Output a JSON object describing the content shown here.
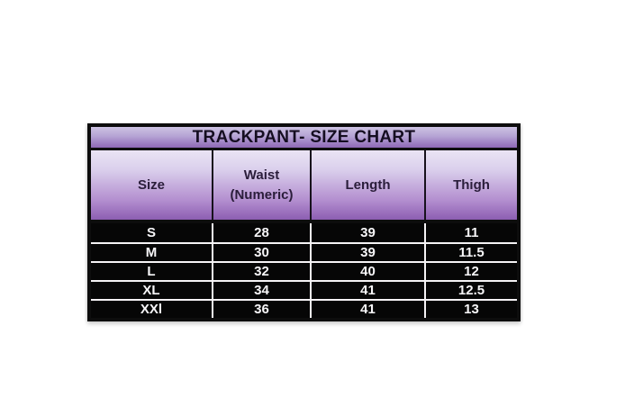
{
  "chart_data": {
    "type": "table",
    "title": "TRACKPANT- SIZE CHART",
    "columns": [
      {
        "line1": "Size",
        "line2": ""
      },
      {
        "line1": "Waist",
        "line2": "(Numeric)"
      },
      {
        "line1": "Length",
        "line2": ""
      },
      {
        "line1": "Thigh",
        "line2": ""
      }
    ],
    "rows": [
      [
        "S",
        "28",
        "39",
        "11"
      ],
      [
        "M",
        "30",
        "39",
        "11.5"
      ],
      [
        "L",
        "32",
        "40",
        "12"
      ],
      [
        "XL",
        "34",
        "41",
        "12.5"
      ],
      [
        "XXl",
        "36",
        "41",
        "13"
      ]
    ]
  },
  "colors": {
    "page_background": "#ffffff",
    "border": "#0d0d0d",
    "title_gradient_top": "#cdc2e3",
    "title_gradient_bottom": "#8e68b6",
    "header_gradient_top": "#eae4f4",
    "header_gradient_bottom": "#8c5eb2",
    "row_background": "#060606",
    "row_text": "#f7f6f8",
    "row_separator": "#f5f3f5",
    "title_text": "#150e21",
    "header_text": "#2a1d3a"
  }
}
